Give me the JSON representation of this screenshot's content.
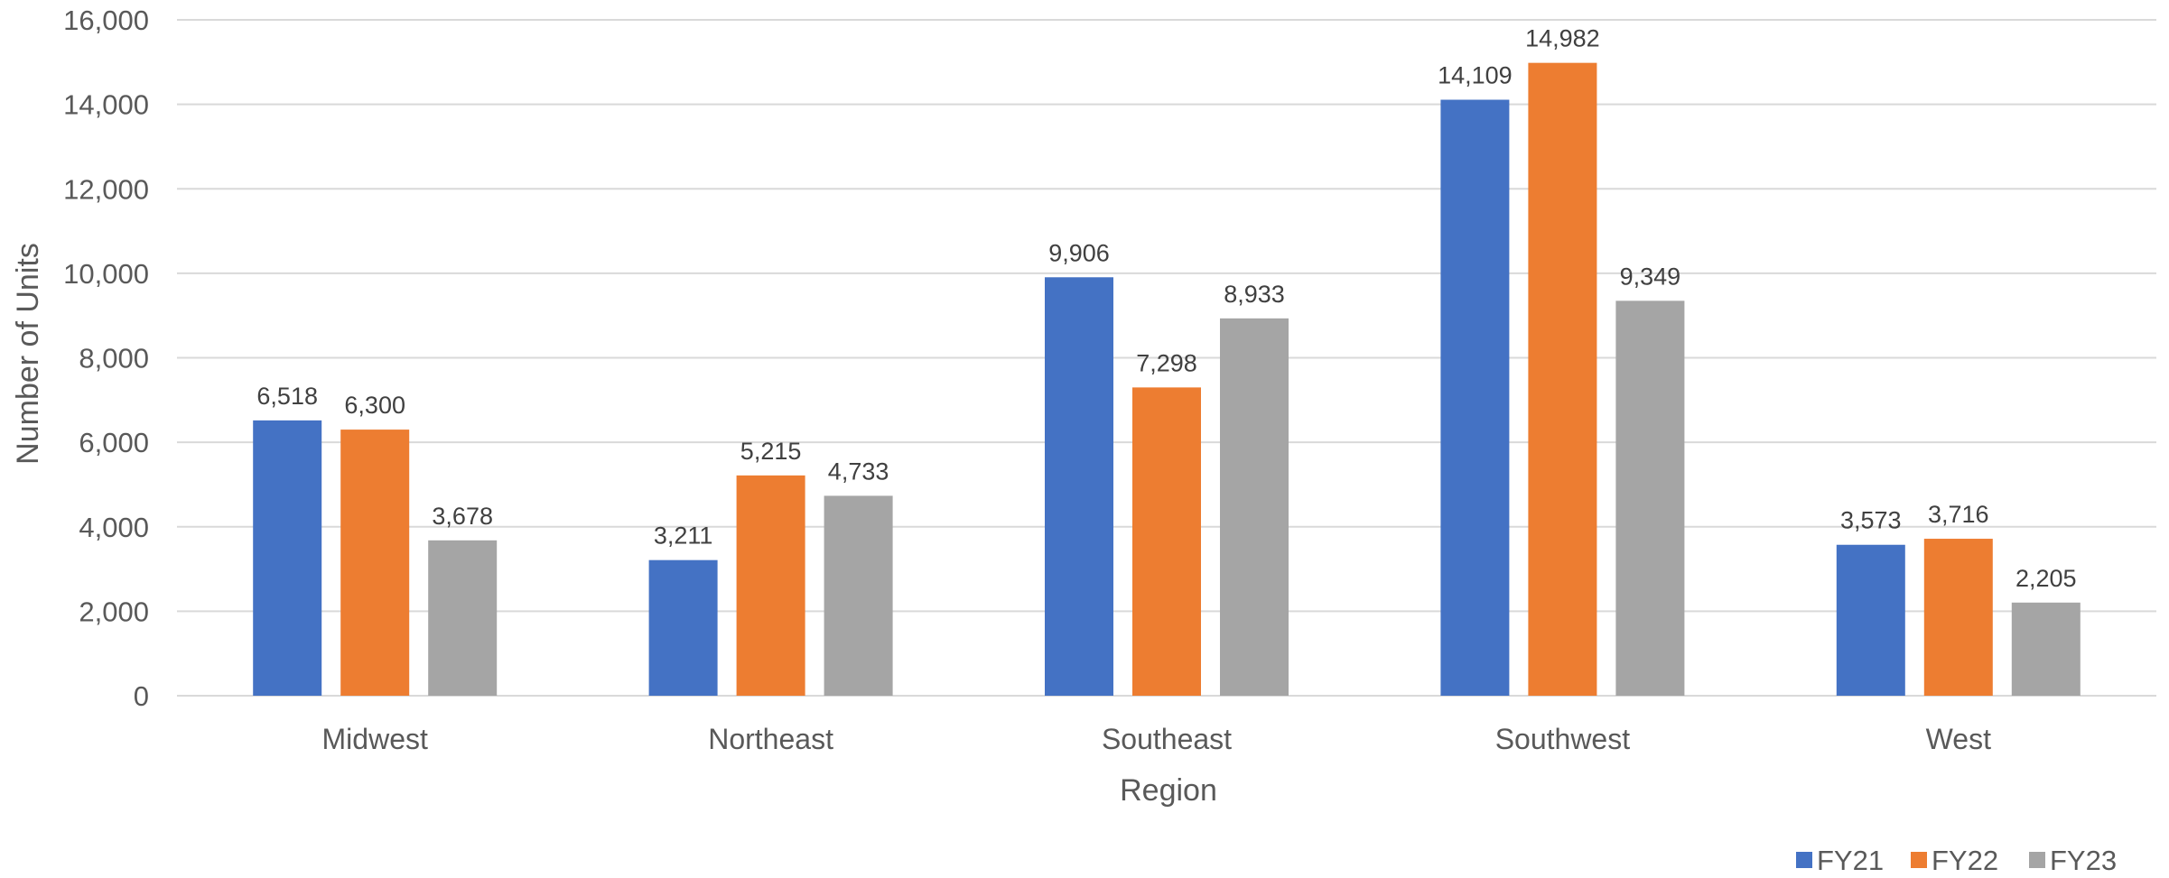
{
  "chart_data": {
    "type": "bar",
    "title": "",
    "xlabel": "Region",
    "ylabel": "Number of Units",
    "categories": [
      "Midwest",
      "Northeast",
      "Southeast",
      "Southwest",
      "West"
    ],
    "series": [
      {
        "name": "FY21",
        "color": "#4472C4",
        "values": [
          6518,
          3211,
          9906,
          14109,
          3573
        ],
        "labels": [
          "6,518",
          "3,211",
          "9,906",
          "14,109",
          "3,573"
        ]
      },
      {
        "name": "FY22",
        "color": "#ED7D31",
        "values": [
          6300,
          5215,
          7298,
          14982,
          3716
        ],
        "labels": [
          "6,300",
          "5,215",
          "7,298",
          "14,982",
          "3,716"
        ]
      },
      {
        "name": "FY23",
        "color": "#A5A5A5",
        "values": [
          3678,
          4733,
          8933,
          9349,
          2205
        ],
        "labels": [
          "3,678",
          "4,733",
          "8,933",
          "9,349",
          "2,205"
        ]
      }
    ],
    "ylim": [
      0,
      16000
    ],
    "yticks": [
      0,
      2000,
      4000,
      6000,
      8000,
      10000,
      12000,
      14000,
      16000
    ],
    "ytick_labels": [
      "0",
      "2,000",
      "4,000",
      "6,000",
      "8,000",
      "10,000",
      "12,000",
      "14,000",
      "16,000"
    ],
    "grid": true,
    "legend_position": "bottom-right",
    "colors": {
      "grid": "#D9D9D9",
      "text": "#595959",
      "label": "#404040"
    }
  }
}
